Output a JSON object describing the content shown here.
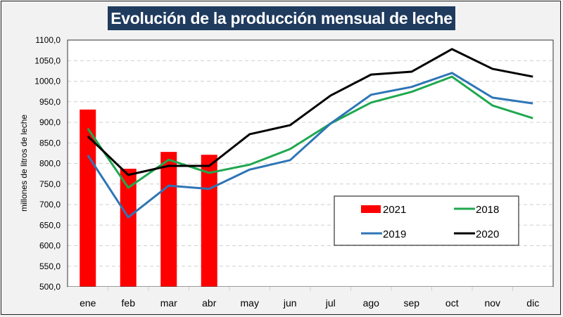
{
  "chart_data": {
    "type": "bar+line",
    "title": "Evolución de la producción mensual de leche",
    "xlabel": "",
    "ylabel": "millones de litros de leche",
    "ylim": [
      500,
      1100
    ],
    "ytick_step": 50,
    "ytick_labels": [
      "500,0",
      "550,0",
      "600,0",
      "650,0",
      "700,0",
      "750,0",
      "800,0",
      "850,0",
      "900,0",
      "950,0",
      "1000,0",
      "1050,0",
      "1100,0"
    ],
    "grid": true,
    "legend_position": "bottom-right",
    "categories": [
      "ene",
      "feb",
      "mar",
      "abr",
      "may",
      "jun",
      "jul",
      "ago",
      "sep",
      "oct",
      "nov",
      "dic"
    ],
    "series": [
      {
        "name": "2021",
        "type": "bar",
        "color": "#ff0000",
        "values": [
          931,
          787,
          828,
          821,
          null,
          null,
          null,
          null,
          null,
          null,
          null,
          null
        ]
      },
      {
        "name": "2018",
        "type": "line",
        "color": "#1fa84f",
        "values": [
          885,
          741,
          809,
          777,
          797,
          835,
          897,
          948,
          974,
          1011,
          941,
          910
        ]
      },
      {
        "name": "2019",
        "type": "line",
        "color": "#2e75b6",
        "values": [
          820,
          669,
          746,
          738,
          785,
          808,
          897,
          967,
          986,
          1020,
          960,
          946
        ]
      },
      {
        "name": "2020",
        "type": "line",
        "color": "#000000",
        "values": [
          866,
          772,
          794,
          794,
          871,
          893,
          965,
          1016,
          1023,
          1078,
          1030,
          1011
        ]
      }
    ],
    "legend": [
      {
        "label": "2021",
        "series": "2021"
      },
      {
        "label": "2018",
        "series": "2018"
      },
      {
        "label": "2019",
        "series": "2019"
      },
      {
        "label": "2020",
        "series": "2020"
      }
    ]
  }
}
